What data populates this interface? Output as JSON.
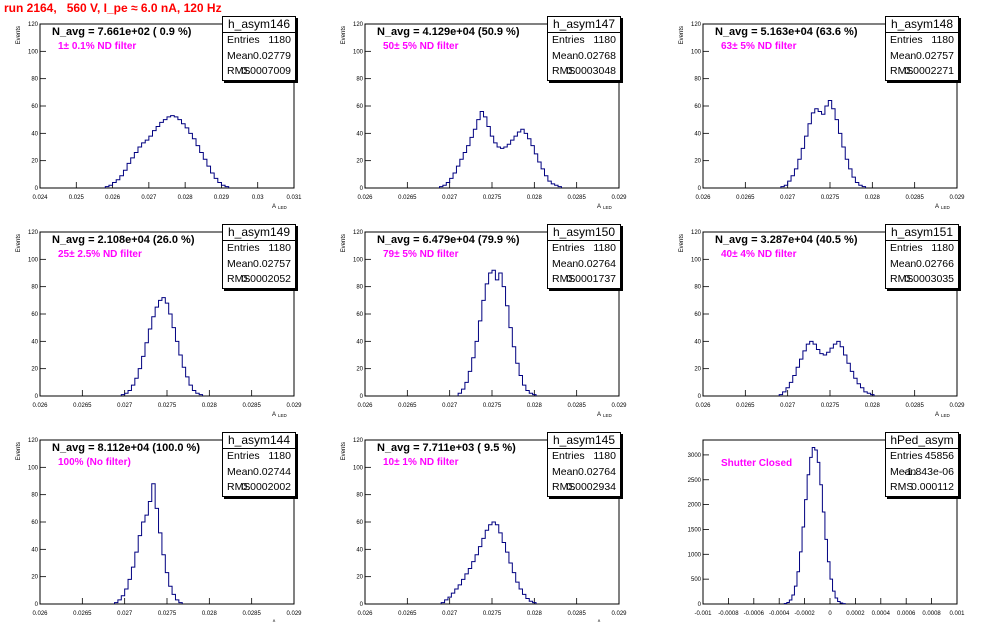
{
  "page_title": "run 2164,   560 V, I_pe ≈ 6.0 nA, 120 Hz",
  "chart_data": [
    {
      "type": "histogram",
      "name": "h_asym146",
      "ylabel": "Events",
      "xlabel": "A",
      "xlabel_sub": "LED",
      "xlim": [
        0.024,
        0.031
      ],
      "ylim": [
        0,
        120
      ],
      "xticks": [
        "0.024",
        "0.025",
        "0.026",
        "0.027",
        "0.028",
        "0.029",
        "0.03",
        "0.031"
      ],
      "yticks": [
        "0",
        "20",
        "40",
        "60",
        "80",
        "100",
        "120"
      ],
      "n_avg": "N_avg = 7.661e+02 ( 0.9 %)",
      "note": "1± 0.1% ND filter",
      "stats": {
        "entries_label": "Entries",
        "entries": "1180",
        "mean_label": "Mean",
        "mean": "0.02779",
        "rms_label": "RMS",
        "rms": "0.0007009"
      },
      "bins": {
        "x0": 0.0258,
        "w": 0.0001,
        "counts": [
          1,
          2,
          4,
          6,
          9,
          13,
          18,
          22,
          26,
          30,
          33,
          35,
          38,
          42,
          45,
          48,
          50,
          52,
          53,
          52,
          50,
          47,
          44,
          40,
          36,
          31,
          26,
          21,
          16,
          11,
          7,
          4,
          2,
          1
        ]
      }
    },
    {
      "type": "histogram",
      "name": "h_asym147",
      "ylabel": "Events",
      "xlabel": "A",
      "xlabel_sub": "LED",
      "xlim": [
        0.026,
        0.029
      ],
      "ylim": [
        0,
        120
      ],
      "xticks": [
        "0.026",
        "0.0265",
        "0.027",
        "0.0275",
        "0.028",
        "0.0285",
        "0.029"
      ],
      "yticks": [
        "0",
        "20",
        "40",
        "60",
        "80",
        "100",
        "120"
      ],
      "n_avg": "N_avg = 4.129e+04 (50.9 %)",
      "note": "50± 5% ND filter",
      "stats": {
        "entries_label": "Entries",
        "entries": "1180",
        "mean_label": "Mean",
        "mean": "0.02768",
        "rms_label": "RMS",
        "rms": "0.0003048"
      },
      "bins": {
        "x0": 0.02688,
        "w": 4e-05,
        "counts": [
          1,
          2,
          4,
          7,
          11,
          16,
          21,
          26,
          31,
          37,
          43,
          50,
          56,
          52,
          45,
          38,
          33,
          30,
          29,
          30,
          32,
          35,
          38,
          41,
          43,
          40,
          36,
          31,
          25,
          19,
          14,
          9,
          5,
          3,
          2,
          1
        ]
      }
    },
    {
      "type": "histogram",
      "name": "h_asym148",
      "ylabel": "Events",
      "xlabel": "A",
      "xlabel_sub": "LED",
      "xlim": [
        0.026,
        0.029
      ],
      "ylim": [
        0,
        120
      ],
      "xticks": [
        "0.026",
        "0.0265",
        "0.027",
        "0.0275",
        "0.028",
        "0.0285",
        "0.029"
      ],
      "yticks": [
        "0",
        "20",
        "40",
        "60",
        "80",
        "100",
        "120"
      ],
      "n_avg": "N_avg = 5.163e+04 (63.6 %)",
      "note": "63± 5% ND filter",
      "stats": {
        "entries_label": "Entries",
        "entries": "1180",
        "mean_label": "Mean",
        "mean": "0.02757",
        "rms_label": "RMS",
        "rms": "0.0002271"
      },
      "bins": {
        "x0": 0.02692,
        "w": 4e-05,
        "counts": [
          1,
          2,
          5,
          9,
          14,
          21,
          29,
          38,
          47,
          55,
          58,
          56,
          54,
          60,
          64,
          58,
          50,
          40,
          30,
          21,
          14,
          8,
          4,
          2,
          1
        ]
      }
    },
    {
      "type": "histogram",
      "name": "h_asym149",
      "ylabel": "Events",
      "xlabel": "A",
      "xlabel_sub": "LED",
      "xlim": [
        0.026,
        0.029
      ],
      "ylim": [
        0,
        120
      ],
      "xticks": [
        "0.026",
        "0.0265",
        "0.027",
        "0.0275",
        "0.028",
        "0.0285",
        "0.029"
      ],
      "yticks": [
        "0",
        "20",
        "40",
        "60",
        "80",
        "100",
        "120"
      ],
      "n_avg": "N_avg = 2.108e+04 (26.0 %)",
      "note": "25± 2.5% ND filter",
      "stats": {
        "entries_label": "Entries",
        "entries": "1180",
        "mean_label": "Mean",
        "mean": "0.02757",
        "rms_label": "RMS",
        "rms": "0.0002052"
      },
      "bins": {
        "x0": 0.02696,
        "w": 4e-05,
        "counts": [
          1,
          2,
          4,
          8,
          13,
          20,
          29,
          39,
          49,
          58,
          65,
          70,
          72,
          68,
          60,
          50,
          40,
          30,
          21,
          14,
          8,
          4,
          2,
          1
        ]
      }
    },
    {
      "type": "histogram",
      "name": "h_asym150",
      "ylabel": "Events",
      "xlabel": "A",
      "xlabel_sub": "LED",
      "xlim": [
        0.026,
        0.029
      ],
      "ylim": [
        0,
        120
      ],
      "xticks": [
        "0.026",
        "0.0265",
        "0.027",
        "0.0275",
        "0.028",
        "0.0285",
        "0.029"
      ],
      "yticks": [
        "0",
        "20",
        "40",
        "60",
        "80",
        "100",
        "120"
      ],
      "n_avg": "N_avg = 6.479e+04 (79.9 %)",
      "note": "79± 5% ND filter",
      "stats": {
        "entries_label": "Entries",
        "entries": "1180",
        "mean_label": "Mean",
        "mean": "0.02764",
        "rms_label": "RMS",
        "rms": "0.0001737"
      },
      "bins": {
        "x0": 0.0271,
        "w": 4e-05,
        "counts": [
          2,
          5,
          10,
          18,
          28,
          40,
          55,
          70,
          82,
          90,
          92,
          85,
          90,
          80,
          66,
          50,
          36,
          24,
          15,
          8,
          4,
          2,
          1
        ]
      }
    },
    {
      "type": "histogram",
      "name": "h_asym151",
      "ylabel": "Events",
      "xlabel": "A",
      "xlabel_sub": "LED",
      "xlim": [
        0.026,
        0.029
      ],
      "ylim": [
        0,
        120
      ],
      "xticks": [
        "0.026",
        "0.0265",
        "0.027",
        "0.0275",
        "0.028",
        "0.0285",
        "0.029"
      ],
      "yticks": [
        "0",
        "20",
        "40",
        "60",
        "80",
        "100",
        "120"
      ],
      "n_avg": "N_avg = 3.287e+04 (40.5 %)",
      "note": "40± 4% ND filter",
      "stats": {
        "entries_label": "Entries",
        "entries": "1180",
        "mean_label": "Mean",
        "mean": "0.02766",
        "rms_label": "RMS",
        "rms": "0.0003035"
      },
      "bins": {
        "x0": 0.0269,
        "w": 4e-05,
        "counts": [
          1,
          3,
          6,
          10,
          15,
          21,
          27,
          33,
          38,
          40,
          38,
          34,
          31,
          30,
          32,
          35,
          38,
          40,
          36,
          30,
          24,
          18,
          13,
          9,
          6,
          3,
          2,
          1
        ]
      }
    },
    {
      "type": "histogram",
      "name": "h_asym144",
      "ylabel": "Events",
      "xlabel": "A",
      "xlabel_sub": "LED",
      "xlim": [
        0.026,
        0.029
      ],
      "ylim": [
        0,
        120
      ],
      "xticks": [
        "0.026",
        "0.0265",
        "0.027",
        "0.0275",
        "0.028",
        "0.0285",
        "0.029"
      ],
      "yticks": [
        "0",
        "20",
        "40",
        "60",
        "80",
        "100",
        "120"
      ],
      "n_avg": "N_avg = 8.112e+04 (100.0 %)",
      "note": "100% (No filter)",
      "stats": {
        "entries_label": "Entries",
        "entries": "1180",
        "mean_label": "Mean",
        "mean": "0.02744",
        "rms_label": "RMS",
        "rms": "0.0002002"
      },
      "bins": {
        "x0": 0.02688,
        "w": 4e-05,
        "counts": [
          1,
          3,
          6,
          11,
          18,
          27,
          38,
          50,
          60,
          65,
          75,
          88,
          70,
          52,
          36,
          23,
          13,
          7,
          3,
          1
        ]
      }
    },
    {
      "type": "histogram",
      "name": "h_asym145",
      "ylabel": "Events",
      "xlabel": "A",
      "xlabel_sub": "LED",
      "xlim": [
        0.026,
        0.029
      ],
      "ylim": [
        0,
        120
      ],
      "xticks": [
        "0.026",
        "0.0265",
        "0.027",
        "0.0275",
        "0.028",
        "0.0285",
        "0.029"
      ],
      "yticks": [
        "0",
        "20",
        "40",
        "60",
        "80",
        "100",
        "120"
      ],
      "n_avg": "N_avg = 7.711e+03 ( 9.5 %)",
      "note": "10± 1% ND filter",
      "stats": {
        "entries_label": "Entries",
        "entries": "1180",
        "mean_label": "Mean",
        "mean": "0.02764",
        "rms_label": "RMS",
        "rms": "0.0002934"
      },
      "bins": {
        "x0": 0.0269,
        "w": 4e-05,
        "counts": [
          1,
          3,
          5,
          8,
          11,
          14,
          18,
          22,
          26,
          31,
          36,
          42,
          48,
          54,
          58,
          60,
          58,
          52,
          45,
          38,
          30,
          23,
          16,
          11,
          7,
          4,
          2,
          1
        ]
      }
    },
    {
      "type": "histogram",
      "name": "hPed_asym",
      "ylabel": "",
      "xlabel": "",
      "xlabel_sub": "",
      "xlim": [
        -0.001,
        0.001
      ],
      "ylim": [
        0,
        3300
      ],
      "xticks": [
        "-0.001",
        "-0.0008",
        "-0.0006",
        "-0.0004",
        "-0.0002",
        "0",
        "0.0002",
        "0.0004",
        "0.0006",
        "0.0008",
        "0.001"
      ],
      "yticks": [
        "0",
        "500",
        "1000",
        "1500",
        "2000",
        "2500",
        "3000"
      ],
      "n_avg": "",
      "note": "Shutter Closed",
      "stats": {
        "entries_label": "Entries",
        "entries": "45856",
        "mean_label": "Mean",
        "mean": "-1.843e-06",
        "rms_label": "RMS",
        "rms": "0.000112"
      },
      "bins": {
        "x0": -0.00036,
        "w": 2e-05,
        "counts": [
          10,
          30,
          80,
          180,
          360,
          650,
          1050,
          1550,
          2100,
          2600,
          2950,
          3150,
          3100,
          2850,
          2400,
          1850,
          1300,
          850,
          500,
          260,
          120,
          50,
          20,
          8
        ]
      }
    }
  ]
}
